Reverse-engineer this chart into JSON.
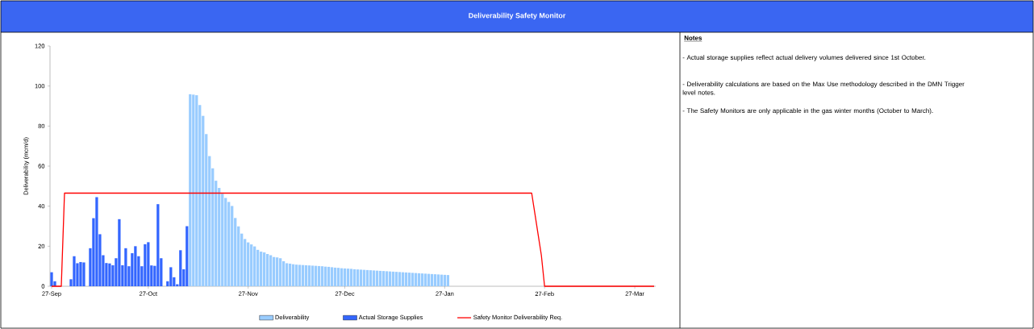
{
  "chart_data": {
    "type": "bar",
    "title": "Deliverability Safety Monitor",
    "ylabel": "Deliverability (mcm/d)",
    "categories": [
      "27-Sep",
      null,
      null,
      null,
      null,
      null,
      null,
      null,
      null,
      null,
      null,
      null,
      null,
      null,
      null,
      null,
      null,
      null,
      null,
      null,
      null,
      null,
      null,
      null,
      null,
      null,
      null,
      null,
      null,
      null,
      "27-Oct",
      null,
      null,
      null,
      null,
      null,
      null,
      null,
      null,
      null,
      null,
      null,
      null,
      null,
      null,
      null,
      null,
      null,
      null,
      null,
      null,
      null,
      null,
      null,
      null,
      null,
      null,
      null,
      null,
      null,
      null,
      "27-Nov",
      null,
      null,
      null,
      null,
      null,
      null,
      null,
      null,
      null,
      null,
      null,
      null,
      null,
      null,
      null,
      null,
      null,
      null,
      null,
      null,
      null,
      null,
      null,
      null,
      null,
      null,
      null,
      null,
      null,
      "27-Dec",
      null,
      null,
      null,
      null,
      null,
      null,
      null,
      null,
      null,
      null,
      null,
      null,
      null,
      null,
      null,
      null,
      null,
      null,
      null,
      null,
      null,
      null,
      null,
      null,
      null,
      null,
      null,
      null,
      null,
      null,
      "27-Jan",
      null,
      null,
      null,
      null,
      null,
      null,
      null,
      null,
      null,
      null,
      null,
      null,
      null,
      null,
      null,
      null,
      null,
      null,
      null,
      null,
      null,
      null,
      null,
      null,
      null,
      null,
      null,
      null,
      null,
      null,
      "27-Feb",
      null,
      null,
      null,
      null,
      null,
      null,
      null,
      null,
      null,
      null,
      null,
      null,
      null,
      null,
      null,
      null,
      null,
      null,
      null,
      null,
      null,
      null,
      null,
      null,
      null,
      null,
      null,
      "27-Mar",
      null,
      null,
      null,
      null,
      null,
      null
    ],
    "ylim": [
      0,
      120
    ],
    "yticks": [
      0,
      20,
      40,
      60,
      80,
      100,
      120
    ],
    "legend": "bottom",
    "series": [
      {
        "name": "Deliverability",
        "color": "#99ccff",
        "values": [
          null,
          null,
          null,
          null,
          null,
          null,
          null,
          null,
          null,
          null,
          null,
          null,
          null,
          null,
          null,
          null,
          null,
          null,
          null,
          null,
          null,
          null,
          null,
          null,
          null,
          null,
          null,
          null,
          null,
          null,
          null,
          null,
          null,
          null,
          null,
          null,
          null,
          null,
          null,
          null,
          null,
          null,
          null,
          95.9,
          95.7,
          95.4,
          90.5,
          85.1,
          76,
          65,
          58.9,
          52.7,
          49.1,
          46.2,
          44.1,
          42.1,
          40.1,
          34.1,
          29.9,
          26.3,
          23.6,
          21.9,
          20.9,
          19.9,
          18.2,
          17.3,
          16.9,
          16.1,
          15.5,
          14.6,
          14.4,
          14.0,
          12.5,
          11.5,
          11.3,
          11.0,
          10.8,
          10.7,
          10.6,
          10.5,
          10.4,
          10.3,
          10.2,
          10.1,
          10.0,
          9.8,
          9.7,
          9.5,
          9.3,
          9.2,
          9.0,
          8.9,
          8.8,
          8.7,
          8.5,
          8.4,
          8.3,
          8.2,
          8.1,
          8.0,
          7.9,
          7.8,
          7.7,
          7.6,
          7.5,
          7.4,
          7.3,
          7.2,
          7.1,
          7.0,
          6.9,
          6.8,
          6.7,
          6.6,
          6.5,
          6.4,
          6.3,
          6.2,
          6.1,
          6.0,
          5.9,
          5.8,
          5.7,
          5.6,
          null,
          null,
          null,
          null,
          null,
          null,
          null,
          null,
          null,
          null,
          null,
          null,
          null,
          null,
          null,
          null,
          null,
          null,
          null,
          null,
          null,
          null,
          null,
          null,
          null,
          null,
          null,
          null,
          null,
          null,
          null,
          null,
          null,
          null,
          null,
          null,
          null,
          null,
          null,
          null,
          null,
          null,
          null,
          null,
          null,
          null,
          null,
          null,
          null,
          null,
          null,
          null,
          null,
          null,
          null,
          null,
          null,
          null,
          null,
          null,
          null,
          null,
          null,
          null
        ]
      },
      {
        "name": "Actual Storage Supplies",
        "color": "#3366ff",
        "values": [
          7,
          2.5,
          null,
          null,
          null,
          null,
          3.5,
          15,
          11.5,
          12.1,
          11.9,
          null,
          19,
          34,
          44.5,
          26,
          15.5,
          11.6,
          11.4,
          10.5,
          14,
          33.5,
          10.5,
          19,
          10,
          16.5,
          20,
          15,
          10,
          21,
          22,
          10.4,
          10.2,
          41,
          14,
          null,
          2.5,
          9.5,
          4.5,
          1,
          18,
          8.5,
          30,
          null,
          null,
          null,
          null,
          null,
          null,
          null,
          null,
          null,
          null,
          null,
          null,
          null,
          null,
          null,
          null,
          null,
          null,
          null,
          null,
          null,
          null,
          null,
          null,
          null,
          null,
          null,
          null,
          null,
          null,
          null,
          null,
          null,
          null,
          null,
          null,
          null,
          null,
          null,
          null,
          null,
          null,
          null,
          null,
          null,
          null,
          null,
          null,
          null,
          null,
          null,
          null,
          null,
          null,
          null,
          null,
          null,
          null,
          null,
          null,
          null,
          null,
          null,
          null,
          null,
          null,
          null,
          null,
          null,
          null,
          null,
          null,
          null,
          null,
          null,
          null,
          null,
          null,
          null,
          null,
          null,
          null,
          null,
          null,
          null,
          null,
          null,
          null,
          null,
          null,
          null,
          null,
          null,
          null,
          null,
          null,
          null,
          null,
          null,
          null,
          null,
          null,
          null,
          null,
          null,
          null,
          null,
          null,
          null,
          null,
          null,
          null,
          null,
          null,
          null,
          null,
          null,
          null,
          null,
          null,
          null,
          null,
          null,
          null,
          null,
          null,
          null,
          null,
          null,
          null,
          null,
          null,
          null,
          null,
          null,
          null,
          null,
          null,
          null,
          null,
          null,
          null,
          null,
          null,
          null
        ]
      },
      {
        "name": "Safety Monitor Deliverability Req.",
        "color": "#ff0000",
        "type": "line",
        "values": [
          0,
          0,
          0,
          0,
          46.5,
          46.5,
          46.5,
          46.5,
          46.5,
          46.5,
          46.5,
          46.5,
          46.5,
          46.5,
          46.5,
          46.5,
          46.5,
          46.5,
          46.5,
          46.5,
          46.5,
          46.5,
          46.5,
          46.5,
          46.5,
          46.5,
          46.5,
          46.5,
          46.5,
          46.5,
          46.5,
          46.5,
          46.5,
          46.5,
          46.5,
          46.5,
          46.5,
          46.5,
          46.5,
          46.5,
          46.5,
          46.5,
          46.5,
          46.5,
          46.5,
          46.5,
          46.5,
          46.5,
          46.5,
          46.5,
          46.5,
          46.5,
          46.5,
          46.5,
          46.5,
          46.5,
          46.5,
          46.5,
          46.5,
          46.5,
          46.5,
          46.5,
          46.5,
          46.5,
          46.5,
          46.5,
          46.5,
          46.5,
          46.5,
          46.5,
          46.5,
          46.5,
          46.5,
          46.5,
          46.5,
          46.5,
          46.5,
          46.5,
          46.5,
          46.5,
          46.5,
          46.5,
          46.5,
          46.5,
          46.5,
          46.5,
          46.5,
          46.5,
          46.5,
          46.5,
          46.5,
          46.5,
          46.5,
          46.5,
          46.5,
          46.5,
          46.5,
          46.5,
          46.5,
          46.5,
          46.5,
          46.5,
          46.5,
          46.5,
          46.5,
          46.5,
          46.5,
          46.5,
          46.5,
          46.5,
          46.5,
          46.5,
          46.5,
          46.5,
          46.5,
          46.5,
          46.5,
          46.5,
          46.5,
          46.5,
          46.5,
          46.5,
          46.5,
          46.5,
          46.5,
          46.5,
          46.5,
          46.5,
          46.5,
          46.5,
          46.5,
          46.5,
          46.5,
          46.5,
          46.5,
          46.5,
          46.5,
          46.5,
          46.5,
          46.5,
          46.5,
          46.5,
          46.5,
          46.5,
          46.5,
          46.5,
          46.5,
          46.5,
          46.5,
          46.5,
          36.2,
          25.8,
          15.5,
          0,
          0,
          0,
          0,
          0,
          0,
          0,
          0,
          0,
          0,
          0,
          0,
          0,
          0,
          0,
          0,
          0,
          0,
          0,
          0,
          0,
          0,
          0,
          0,
          0,
          0,
          0,
          0,
          0,
          0,
          0,
          0,
          0,
          0,
          0
        ]
      }
    ],
    "annotations": [
      "Notes",
      "- Actual storage supplies reflect actual delivery volumes delivered since 1st October.",
      "- Deliverability calculations are based on the Max Use methodology described in the DMN Trigger level notes.",
      "- The Safety Monitors are only applicable in the gas winter months (October to March)."
    ]
  }
}
